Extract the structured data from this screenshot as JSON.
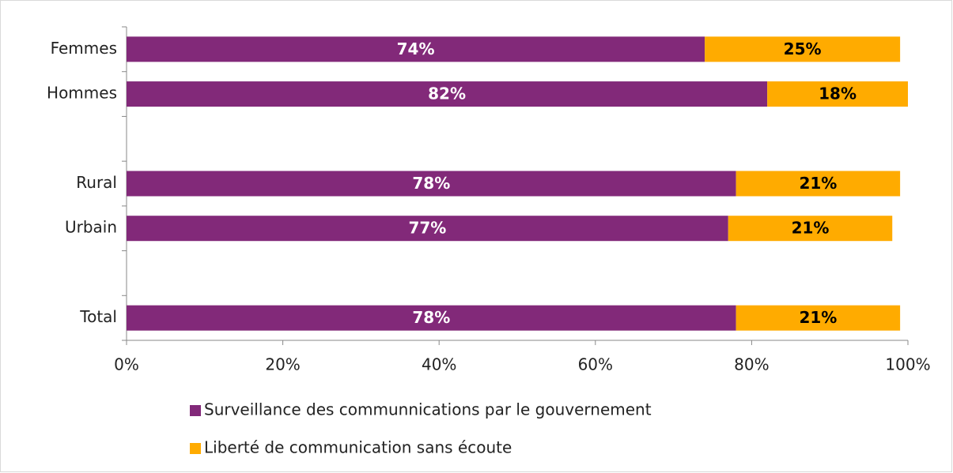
{
  "chart_data": {
    "type": "stacked_bar_horizontal",
    "categories": [
      "Femmes",
      "Hommes",
      null,
      "Rural",
      "Urbain",
      null,
      "Total"
    ],
    "series": [
      {
        "name": "Surveillance des communnications par le gouvernement",
        "color": "#822979",
        "values": [
          74,
          82,
          null,
          78,
          77,
          null,
          78
        ],
        "value_labels": [
          "74%",
          "82%",
          null,
          "78%",
          "77%",
          null,
          "78%"
        ]
      },
      {
        "name": "Liberté de communication sans écoute",
        "color": "#ffab00",
        "values": [
          25,
          18,
          null,
          21,
          21,
          null,
          21
        ],
        "value_labels": [
          "25%",
          "18%",
          null,
          "21%",
          "21%",
          null,
          "21%"
        ]
      }
    ],
    "xlim": [
      0,
      100
    ],
    "xticks": [
      {
        "value": 0,
        "label": "0%"
      },
      {
        "value": 20,
        "label": "20%"
      },
      {
        "value": 40,
        "label": "40%"
      },
      {
        "value": 60,
        "label": "60%"
      },
      {
        "value": 80,
        "label": "80%"
      },
      {
        "value": 100,
        "label": "100%"
      }
    ],
    "grid": false,
    "legend": "bottom"
  }
}
